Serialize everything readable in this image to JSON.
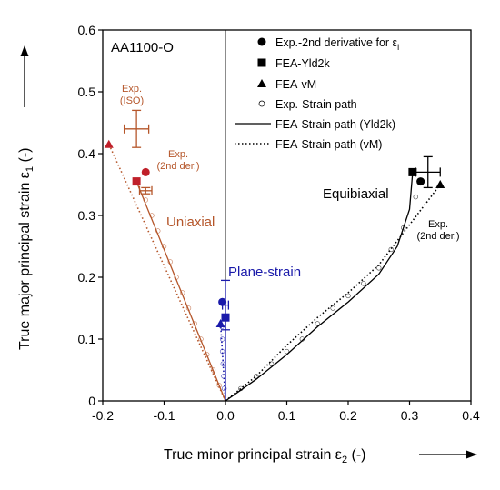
{
  "chart_data": {
    "type": "scatter",
    "title": "",
    "panel_label": "AA1100-O",
    "xlabel": "True minor principal strain ε2 (-)",
    "ylabel": "True major principal strain ε1 (-)",
    "xlim": [
      -0.2,
      0.4
    ],
    "ylim": [
      0,
      0.6
    ],
    "xticks": [
      "-0.2",
      "-0.1",
      "0.0",
      "0.1",
      "0.2",
      "0.3",
      "0.4"
    ],
    "yticks": [
      "0",
      "0.1",
      "0.2",
      "0.3",
      "0.4",
      "0.5",
      "0.6"
    ],
    "grid": false,
    "legend_position": "top-right",
    "legend": [
      {
        "key": "exp_2nd",
        "label": "Exp.-2nd derivative for εl"
      },
      {
        "key": "fea_yld",
        "label": "FEA-Yld2k"
      },
      {
        "key": "fea_vm",
        "label": "FEA-vM"
      },
      {
        "key": "exp_path",
        "label": "Exp.-Strain path"
      },
      {
        "key": "fea_path_yld",
        "label": "FEA-Strain path (Yld2k)"
      },
      {
        "key": "fea_path_vm",
        "label": "FEA-Strain path (vM)"
      }
    ],
    "annotations": {
      "exp_iso": "Exp. (ISO)",
      "exp_2nd_left": "Exp. (2nd der.)",
      "uniaxial": "Uniaxial",
      "plane_strain": "Plane-strain",
      "equibiaxial": "Equibiaxial",
      "exp_2nd_right": "Exp. (2nd der.)"
    },
    "colors": {
      "uniaxial": "#b5562a",
      "uniaxial_fill": "#c0202a",
      "plane_strain": "#1a1aaa",
      "equibiaxial": "#000000"
    },
    "series": [
      {
        "name": "Exp.-2nd derivative for εl",
        "marker": "circle",
        "points": [
          {
            "group": "uniaxial",
            "x": -0.13,
            "y": 0.37
          },
          {
            "group": "plane_strain",
            "x": -0.005,
            "y": 0.16
          },
          {
            "group": "equibiaxial",
            "x": 0.318,
            "y": 0.355
          }
        ]
      },
      {
        "name": "FEA-Yld2k",
        "marker": "square",
        "points": [
          {
            "group": "uniaxial",
            "x": -0.145,
            "y": 0.355
          },
          {
            "group": "plane_strain",
            "x": 0.0,
            "y": 0.135
          },
          {
            "group": "equibiaxial",
            "x": 0.305,
            "y": 0.37
          }
        ]
      },
      {
        "name": "FEA-vM",
        "marker": "triangle",
        "points": [
          {
            "group": "uniaxial",
            "x": -0.19,
            "y": 0.415
          },
          {
            "group": "plane_strain",
            "x": -0.008,
            "y": 0.125
          },
          {
            "group": "equibiaxial",
            "x": 0.35,
            "y": 0.35
          }
        ]
      }
    ],
    "error_bars": [
      {
        "label": "Exp. (ISO)",
        "group": "uniaxial",
        "x": -0.145,
        "y": 0.44,
        "xerr": 0.02,
        "yerr": 0.03
      },
      {
        "label": "Exp. (2nd der.)",
        "group": "uniaxial",
        "x": -0.13,
        "y": 0.34,
        "xerr": 0.01,
        "yerr": 0.005
      },
      {
        "label": "Plane-strain",
        "group": "plane_strain",
        "x": 0.0,
        "y": 0.155,
        "xerr": 0.005,
        "yerr": 0.04
      },
      {
        "label": "Exp. (2nd der.)",
        "group": "equibiaxial",
        "x": 0.33,
        "y": 0.37,
        "xerr": 0.02,
        "yerr": 0.025
      }
    ],
    "strain_paths": [
      {
        "name": "FEA-Strain path (Yld2k)",
        "group": "uniaxial",
        "style": "solid",
        "x": [
          0,
          -0.145
        ],
        "y": [
          0,
          0.355
        ]
      },
      {
        "name": "FEA-Strain path (vM)",
        "group": "uniaxial",
        "style": "dotted",
        "x": [
          0,
          -0.19
        ],
        "y": [
          0,
          0.415
        ]
      },
      {
        "name": "FEA-Strain path (Yld2k)",
        "group": "plane_strain",
        "style": "solid",
        "x": [
          0,
          0.0
        ],
        "y": [
          0,
          0.135
        ]
      },
      {
        "name": "FEA-Strain path (vM)",
        "group": "plane_strain",
        "style": "dotted",
        "x": [
          0,
          -0.008
        ],
        "y": [
          0,
          0.125
        ]
      },
      {
        "name": "FEA-Strain path (Yld2k)",
        "group": "equibiaxial",
        "style": "solid",
        "x": [
          0,
          0.05,
          0.1,
          0.15,
          0.2,
          0.25,
          0.28,
          0.3,
          0.305
        ],
        "y": [
          0,
          0.035,
          0.075,
          0.12,
          0.16,
          0.205,
          0.25,
          0.31,
          0.37
        ]
      },
      {
        "name": "FEA-Strain path (vM)",
        "group": "equibiaxial",
        "style": "dotted",
        "x": [
          0,
          0.05,
          0.1,
          0.15,
          0.2,
          0.25,
          0.3,
          0.35
        ],
        "y": [
          0,
          0.04,
          0.09,
          0.135,
          0.175,
          0.22,
          0.285,
          0.35
        ]
      }
    ],
    "exp_strain_path_points": [
      {
        "group": "uniaxial",
        "x": [
          -0.01,
          -0.02,
          -0.03,
          -0.04,
          -0.05,
          -0.06,
          -0.07,
          -0.08,
          -0.09,
          -0.1,
          -0.11,
          -0.12,
          -0.13
        ],
        "y": [
          0.025,
          0.05,
          0.075,
          0.1,
          0.125,
          0.15,
          0.175,
          0.2,
          0.225,
          0.25,
          0.275,
          0.3,
          0.325
        ]
      },
      {
        "group": "plane_strain",
        "x": [
          -0.002,
          -0.003,
          -0.004,
          -0.005,
          -0.005,
          -0.006
        ],
        "y": [
          0.02,
          0.04,
          0.06,
          0.08,
          0.1,
          0.12
        ]
      },
      {
        "group": "equibiaxial",
        "x": [
          0.025,
          0.05,
          0.075,
          0.1,
          0.125,
          0.15,
          0.175,
          0.2,
          0.225,
          0.25,
          0.27,
          0.29,
          0.31
        ],
        "y": [
          0.02,
          0.04,
          0.06,
          0.08,
          0.1,
          0.125,
          0.15,
          0.17,
          0.19,
          0.215,
          0.245,
          0.28,
          0.33
        ]
      }
    ]
  }
}
